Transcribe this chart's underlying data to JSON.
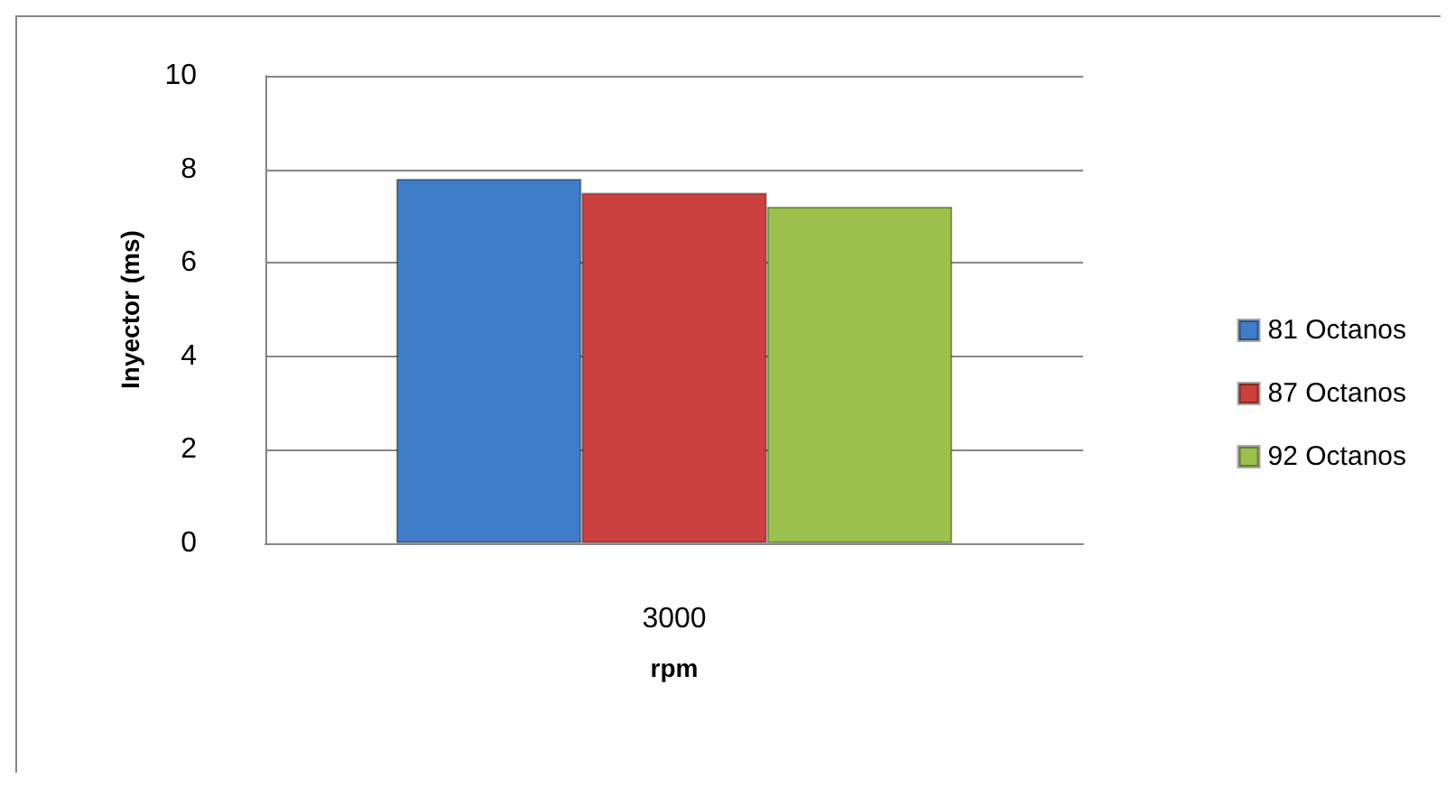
{
  "chart_data": {
    "type": "bar",
    "xlabel": "rpm",
    "ylabel": "Inyector (ms)",
    "categories": [
      "3000"
    ],
    "series": [
      {
        "name": "81 Octanos",
        "color": "#3f7dc8",
        "values": [
          7.8
        ]
      },
      {
        "name": "87 Octanos",
        "color": "#cc403e",
        "values": [
          7.5
        ]
      },
      {
        "name": "92 Octanos",
        "color": "#9bc14c",
        "values": [
          7.2
        ]
      }
    ],
    "ylim": [
      0,
      10
    ],
    "yticks": [
      0,
      2,
      4,
      6,
      8,
      10
    ],
    "grid": "y",
    "legend": "right"
  }
}
